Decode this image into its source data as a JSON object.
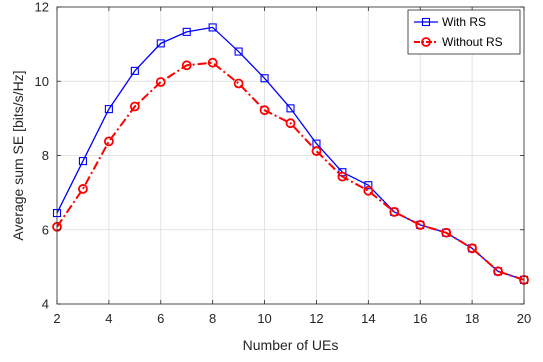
{
  "chart_data": {
    "type": "line",
    "title": "",
    "xlabel": "Number of UEs",
    "ylabel": "Average sum SE [bits/s/Hz]",
    "xlim": [
      2,
      20
    ],
    "ylim": [
      4,
      12
    ],
    "xticks": [
      2,
      4,
      6,
      8,
      10,
      12,
      14,
      16,
      18,
      20
    ],
    "yticks": [
      4,
      6,
      8,
      10,
      12
    ],
    "grid": true,
    "legend_position": "top-right",
    "x": [
      2,
      3,
      4,
      5,
      6,
      7,
      8,
      9,
      10,
      11,
      12,
      13,
      14,
      15,
      16,
      17,
      18,
      19,
      20
    ],
    "series": [
      {
        "name": "With RS",
        "color": "#0000ff",
        "marker": "square",
        "linestyle": "solid",
        "values": [
          6.45,
          7.85,
          9.25,
          10.28,
          11.02,
          11.33,
          11.45,
          10.8,
          10.08,
          9.27,
          8.32,
          7.55,
          7.2,
          6.48,
          6.13,
          5.92,
          5.5,
          4.88,
          4.65
        ]
      },
      {
        "name": "Without RS",
        "color": "#ff0000",
        "marker": "circle",
        "linestyle": "dashdot",
        "values": [
          6.08,
          7.1,
          8.38,
          9.32,
          9.98,
          10.43,
          10.5,
          9.94,
          9.22,
          8.87,
          8.12,
          7.43,
          7.05,
          6.48,
          6.13,
          5.92,
          5.5,
          4.88,
          4.65
        ]
      }
    ]
  }
}
